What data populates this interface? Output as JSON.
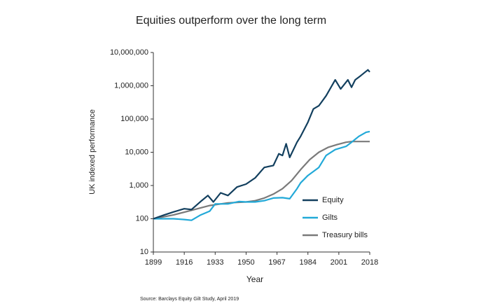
{
  "chart_data": {
    "type": "line",
    "title": "Equities outperform over the long term",
    "xlabel": "Year",
    "ylabel": "UK indexed performance",
    "source": "Source: Barclays Equity Gilt Study, April 2019",
    "yscale": "log",
    "grid": false,
    "legend": "right",
    "xlim": [
      1899,
      2018
    ],
    "xticks": [
      1899,
      1916,
      1933,
      1950,
      1967,
      1984,
      2001,
      2018
    ],
    "ylim": [
      10,
      10000000
    ],
    "yticks": [
      10,
      100,
      {
        "value": 1000,
        "label": "1,000"
      },
      {
        "value": 10000,
        "label": "10,000"
      },
      {
        "value": 100000,
        "label": "100,000"
      },
      {
        "value": 1000000,
        "label": "1,000,000"
      },
      {
        "value": 10000000,
        "label": "10,000,000"
      }
    ],
    "series": [
      {
        "name": "Equity",
        "color": "#123f5e",
        "x": [
          1899,
          1905,
          1910,
          1916,
          1920,
          1925,
          1929,
          1932,
          1936,
          1940,
          1945,
          1950,
          1955,
          1960,
          1965,
          1968,
          1970,
          1972,
          1974,
          1978,
          1980,
          1984,
          1987,
          1990,
          1994,
          1999,
          2002,
          2006,
          2008,
          2010,
          2013,
          2017,
          2018
        ],
        "values": [
          100,
          130,
          160,
          200,
          190,
          330,
          500,
          320,
          600,
          500,
          900,
          1100,
          1700,
          3500,
          4000,
          9000,
          8000,
          18000,
          7000,
          20000,
          30000,
          80000,
          200000,
          250000,
          500000,
          1500000,
          800000,
          1500000,
          900000,
          1500000,
          2000000,
          3000000,
          2600000
        ]
      },
      {
        "name": "Gilts",
        "color": "#22a9d8",
        "x": [
          1899,
          1910,
          1916,
          1920,
          1925,
          1930,
          1933,
          1940,
          1946,
          1950,
          1955,
          1960,
          1965,
          1970,
          1974,
          1978,
          1980,
          1984,
          1990,
          1994,
          1999,
          2005,
          2008,
          2012,
          2016,
          2018
        ],
        "values": [
          100,
          100,
          95,
          90,
          130,
          170,
          280,
          280,
          330,
          320,
          320,
          350,
          420,
          430,
          400,
          800,
          1200,
          2000,
          3500,
          8000,
          12000,
          15000,
          20000,
          30000,
          40000,
          42000
        ]
      },
      {
        "name": "Treasury bills",
        "color": "#7a7a7a",
        "x": [
          1899,
          1910,
          1920,
          1930,
          1940,
          1950,
          1955,
          1960,
          1965,
          1970,
          1975,
          1980,
          1985,
          1990,
          1995,
          2000,
          2005,
          2008,
          2018
        ],
        "values": [
          100,
          130,
          180,
          250,
          300,
          320,
          350,
          420,
          550,
          800,
          1400,
          3000,
          6000,
          10000,
          14000,
          17000,
          20000,
          21000,
          21000
        ]
      }
    ]
  }
}
